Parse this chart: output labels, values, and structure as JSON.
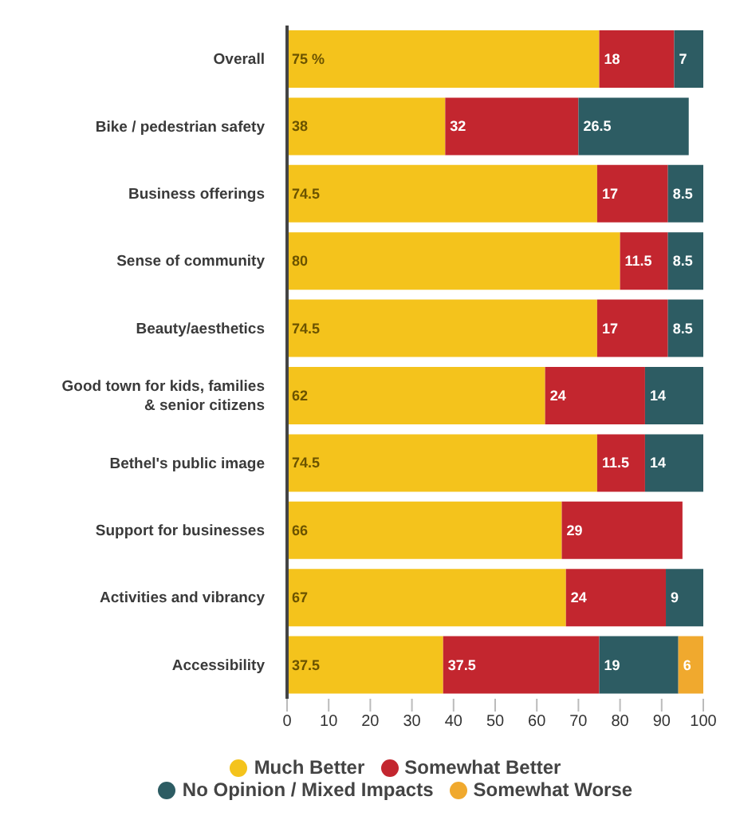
{
  "chart_data": {
    "type": "bar",
    "orientation": "horizontal",
    "stacked": true,
    "categories": [
      "Overall",
      "Bike / pedestrian safety",
      "Business offerings",
      "Sense of community",
      "Beauty/aesthetics",
      "Good town for kids, families & senior citizens",
      "Bethel's public image",
      "Support for businesses",
      "Activities and vibrancy",
      "Accessibility"
    ],
    "series": [
      {
        "name": "Much Better",
        "color": "#f4c31c",
        "values": [
          75,
          38,
          74.5,
          80,
          74.5,
          62,
          74.5,
          66,
          67,
          37.5
        ],
        "value_labels": [
          "75 %",
          "38",
          "74.5",
          "80",
          "74.5",
          "62",
          "74.5",
          "66",
          "67",
          "37.5"
        ]
      },
      {
        "name": "Somewhat Better",
        "color": "#c3262f",
        "values": [
          18,
          32,
          17,
          11.5,
          17,
          24,
          11.5,
          29,
          24,
          37.5
        ],
        "value_labels": [
          "18",
          "32",
          "17",
          "11.5",
          "17",
          "24",
          "11.5",
          "29",
          "24",
          "37.5"
        ]
      },
      {
        "name": "No Opinion / Mixed Impacts",
        "color": "#2d5c63",
        "values": [
          7,
          26.5,
          8.5,
          8.5,
          8.5,
          14,
          14,
          null,
          9,
          19
        ],
        "value_labels": [
          "7",
          "26.5",
          "8.5",
          "8.5",
          "8.5",
          "14",
          "14",
          null,
          "9",
          "19"
        ]
      },
      {
        "name": "Somewhat Worse",
        "color": "#f0a92e",
        "values": [
          null,
          null,
          null,
          null,
          null,
          null,
          null,
          null,
          null,
          6
        ],
        "value_labels": [
          null,
          null,
          null,
          null,
          null,
          null,
          null,
          null,
          null,
          "6"
        ]
      }
    ],
    "xlim": [
      0,
      100
    ],
    "xticks": [
      0,
      10,
      20,
      30,
      40,
      50,
      60,
      70,
      80,
      90,
      100
    ],
    "grid": false,
    "legend": "bottom"
  }
}
